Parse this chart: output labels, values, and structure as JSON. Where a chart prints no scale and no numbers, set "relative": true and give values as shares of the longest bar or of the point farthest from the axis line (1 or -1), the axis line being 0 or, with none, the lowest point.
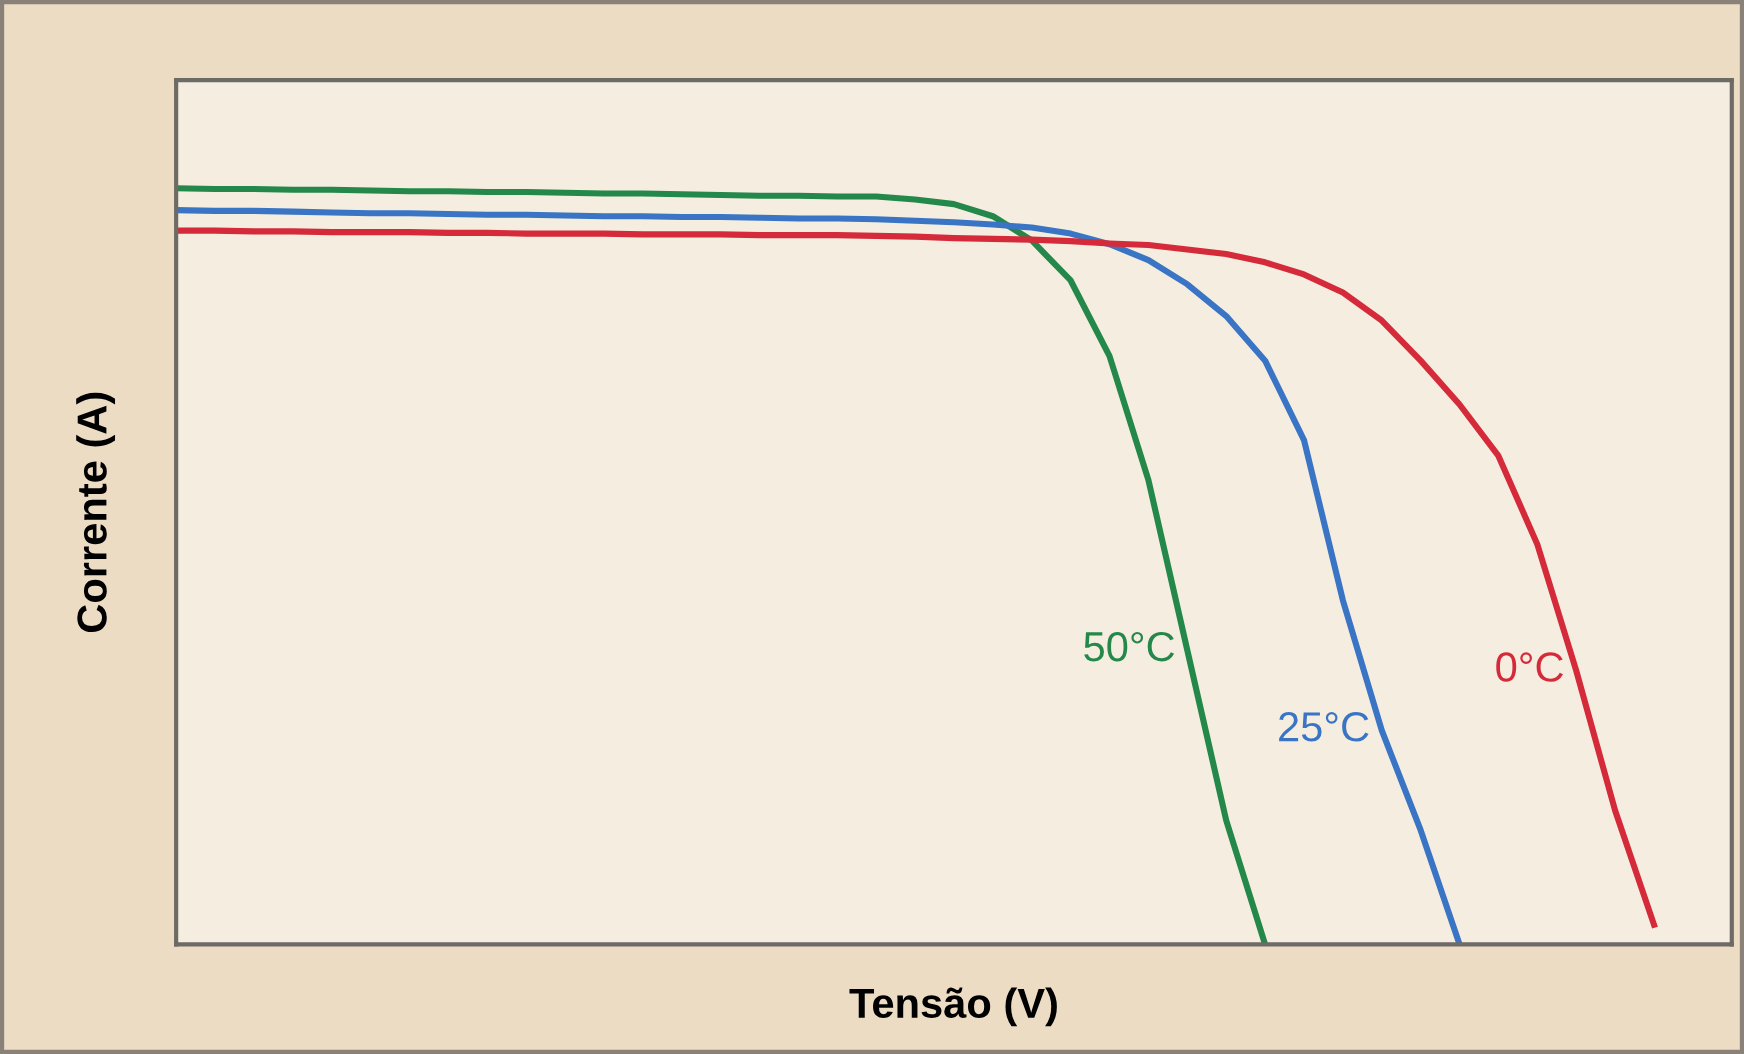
{
  "chart_data": {
    "type": "line",
    "relative": true,
    "xlabel": "Tensão (V)",
    "ylabel": "Corrente (A)",
    "legend": false,
    "grid": false,
    "marker": "none",
    "line_style": "solid",
    "categories": [
      null,
      null,
      null,
      null,
      null,
      null,
      null,
      null,
      null,
      null,
      null,
      null,
      null,
      null,
      null,
      null,
      null,
      null,
      null,
      null,
      null,
      null,
      null,
      null,
      null,
      null,
      null,
      null,
      null,
      null,
      null,
      null,
      null,
      null,
      null,
      null,
      null,
      null,
      null,
      null,
      null
    ],
    "series": [
      {
        "name": "50°C",
        "color": "#23884a",
        "values": [
          1.0,
          0.999,
          0.999,
          0.998,
          0.998,
          0.997,
          0.996,
          0.996,
          0.995,
          0.995,
          0.994,
          0.993,
          0.993,
          0.992,
          0.991,
          0.99,
          0.99,
          0.989,
          0.989,
          0.985,
          0.979,
          0.963,
          0.931,
          0.878,
          0.778,
          0.614,
          0.389,
          0.164,
          0.0,
          null,
          null,
          null,
          null,
          null,
          null,
          null,
          null,
          null,
          null,
          null,
          null
        ]
      },
      {
        "name": "25°C",
        "color": "#3a74c4",
        "values": [
          0.971,
          0.97,
          0.97,
          0.969,
          0.968,
          0.967,
          0.967,
          0.966,
          0.965,
          0.965,
          0.964,
          0.963,
          0.963,
          0.962,
          0.962,
          0.961,
          0.96,
          0.96,
          0.959,
          0.957,
          0.955,
          0.952,
          0.948,
          0.94,
          0.926,
          0.905,
          0.873,
          0.831,
          0.772,
          0.667,
          0.455,
          0.283,
          0.151,
          0.0,
          null,
          null,
          null,
          null,
          null,
          null,
          null
        ]
      },
      {
        "name": "0°C",
        "color": "#d42a3a",
        "values": [
          0.944,
          0.944,
          0.943,
          0.943,
          0.942,
          0.942,
          0.942,
          0.941,
          0.941,
          0.94,
          0.94,
          0.94,
          0.939,
          0.939,
          0.939,
          0.938,
          0.938,
          0.938,
          0.937,
          0.936,
          0.934,
          0.933,
          0.932,
          0.93,
          0.927,
          0.925,
          0.919,
          0.913,
          0.902,
          0.886,
          0.862,
          0.825,
          0.772,
          0.714,
          0.646,
          0.529,
          0.362,
          0.177,
          0.026,
          null,
          null
        ]
      }
    ]
  }
}
